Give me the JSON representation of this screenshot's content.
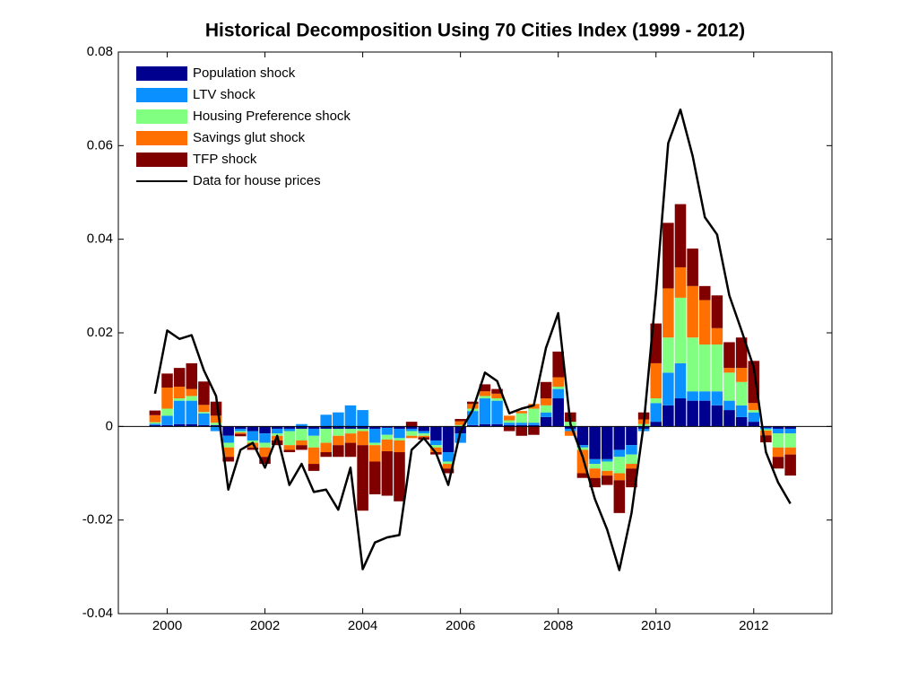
{
  "chart_data": {
    "type": "stacked_bar",
    "title": "Historical Decomposition Using 70 Cities Index (1999 - 2012)",
    "x": [
      1999.75,
      2000,
      2000.25,
      2000.5,
      2000.75,
      2001,
      2001.25,
      2001.5,
      2001.75,
      2002,
      2002.25,
      2002.5,
      2002.75,
      2003,
      2003.25,
      2003.5,
      2003.75,
      2004,
      2004.25,
      2004.5,
      2004.75,
      2005,
      2005.25,
      2005.5,
      2005.75,
      2006,
      2006.25,
      2006.5,
      2006.75,
      2007,
      2007.25,
      2007.5,
      2007.75,
      2008,
      2008.25,
      2008.5,
      2008.75,
      2009,
      2009.25,
      2009.5,
      2009.75,
      2010,
      2010.25,
      2010.5,
      2010.75,
      2011,
      2011.25,
      2011.5,
      2011.75,
      2012,
      2012.25,
      2012.5,
      2012.75
    ],
    "series": [
      {
        "name": "Population shock",
        "color": "#00008f",
        "type": "bar",
        "values": [
          0.0003,
          0.0003,
          0.0005,
          0.0005,
          0.0003,
          0.0003,
          -0.002,
          -0.0005,
          -0.001,
          -0.0015,
          -0.0005,
          -0.0005,
          -0.0005,
          -0.0005,
          -0.0005,
          -0.0005,
          -0.0005,
          -0.0005,
          -0.0005,
          -0.0003,
          -0.0005,
          -0.0005,
          -0.001,
          -0.003,
          -0.0055,
          -0.0015,
          0.0003,
          0.0005,
          0.0005,
          0.0003,
          0.0003,
          0.0003,
          0.002,
          0.006,
          -0.0005,
          -0.004,
          -0.007,
          -0.007,
          -0.005,
          -0.004,
          -0.0005,
          0.001,
          0.0045,
          0.006,
          0.0055,
          0.0055,
          0.0045,
          0.0035,
          0.002,
          0.001,
          -0.0003,
          -0.0005,
          -0.0005
        ]
      },
      {
        "name": "LTV shock",
        "color": "#0a90ff",
        "type": "bar",
        "values": [
          0.0003,
          0.002,
          0.005,
          0.005,
          0.0025,
          -0.001,
          -0.0015,
          -0.0005,
          -0.002,
          -0.002,
          -0.001,
          -0.0005,
          0.0005,
          -0.0015,
          0.0025,
          0.003,
          0.0045,
          0.0035,
          -0.003,
          -0.0015,
          -0.002,
          -0.0005,
          -0.0005,
          -0.001,
          -0.002,
          -0.002,
          0.003,
          0.0055,
          0.005,
          0.0005,
          0.0005,
          0.0005,
          0.001,
          0.002,
          -0.0005,
          -0.0005,
          -0.001,
          -0.0005,
          -0.0015,
          -0.002,
          -0.0005,
          0.004,
          0.007,
          0.0075,
          0.002,
          0.002,
          0.003,
          0.002,
          0.0025,
          0.002,
          -0.0003,
          -0.001,
          -0.001
        ]
      },
      {
        "name": "Housing Preference shock",
        "color": "#80ff80",
        "type": "bar",
        "values": [
          0.0003,
          0.0015,
          0.0005,
          0.001,
          0.0003,
          0.0005,
          -0.001,
          -0.0003,
          -0.0005,
          -0.001,
          -0.0005,
          -0.003,
          -0.0025,
          -0.0025,
          -0.003,
          -0.0015,
          -0.001,
          -0.0005,
          -0.0005,
          -0.001,
          -0.0005,
          -0.001,
          -0.0005,
          -0.0005,
          -0.0005,
          0.0003,
          0.0005,
          0.0005,
          0.0005,
          0.0005,
          0.002,
          0.003,
          0.0015,
          0.0005,
          0.001,
          -0.0005,
          -0.001,
          -0.002,
          -0.0035,
          -0.002,
          0.0005,
          0.001,
          0.0075,
          0.014,
          0.0115,
          0.01,
          0.01,
          0.006,
          0.005,
          0.0005,
          -0.0003,
          -0.003,
          -0.003
        ]
      },
      {
        "name": "Savings glut shock",
        "color": "#ff7000",
        "type": "bar",
        "values": [
          0.0015,
          0.0045,
          0.0025,
          0.0015,
          0.0015,
          0.0015,
          -0.002,
          -0.0003,
          -0.001,
          -0.002,
          -0.001,
          -0.001,
          -0.001,
          -0.0035,
          -0.002,
          -0.002,
          -0.002,
          -0.003,
          -0.0035,
          -0.0025,
          -0.0025,
          -0.0005,
          -0.0003,
          -0.001,
          -0.001,
          0.0008,
          0.001,
          0.001,
          0.001,
          0.001,
          0.0005,
          0.001,
          0.0015,
          0.002,
          -0.001,
          -0.005,
          -0.002,
          -0.001,
          -0.0015,
          -0.001,
          0.001,
          0.0075,
          0.0105,
          0.0065,
          0.011,
          0.0095,
          0.0035,
          0.001,
          0.003,
          0.0015,
          -0.001,
          -0.002,
          -0.0015
        ]
      },
      {
        "name": "TFP shock",
        "color": "#800000",
        "type": "bar",
        "values": [
          0.001,
          0.003,
          0.004,
          0.0055,
          0.005,
          0.003,
          -0.001,
          -0.0005,
          -0.0005,
          -0.0015,
          -0.001,
          -0.0005,
          -0.001,
          -0.0015,
          -0.001,
          -0.0025,
          -0.003,
          -0.014,
          -0.007,
          -0.0095,
          -0.0105,
          0.001,
          -0.0005,
          -0.0005,
          -0.001,
          0.0005,
          0.0005,
          0.0015,
          0.001,
          -0.001,
          -0.002,
          -0.0018,
          0.0035,
          0.0055,
          0.002,
          -0.001,
          -0.002,
          -0.002,
          -0.007,
          -0.004,
          0.0015,
          0.0085,
          0.014,
          0.0135,
          0.008,
          0.003,
          0.007,
          0.0055,
          0.0065,
          0.009,
          -0.0015,
          -0.0025,
          -0.0045
        ]
      },
      {
        "name": "Data for house prices",
        "color": "#000000",
        "type": "line",
        "values": [
          0.007,
          0.0205,
          0.0187,
          0.0195,
          0.012,
          0.0065,
          -0.0135,
          -0.005,
          -0.0035,
          -0.0088,
          -0.002,
          -0.0125,
          -0.008,
          -0.014,
          -0.0135,
          -0.0178,
          -0.0088,
          -0.0305,
          -0.0248,
          -0.0237,
          -0.0232,
          -0.005,
          -0.0025,
          -0.0057,
          -0.0125,
          -0.001,
          0.0035,
          0.0115,
          0.0097,
          0.0028,
          0.0038,
          0.0045,
          0.0168,
          0.0242,
          0.0005,
          -0.0065,
          -0.0155,
          -0.022,
          -0.0307,
          -0.0185,
          0.0005,
          0.0285,
          0.0605,
          0.0677,
          0.0578,
          0.0447,
          0.041,
          0.028,
          0.0205,
          0.0126,
          -0.0055,
          -0.012,
          -0.0165
        ]
      }
    ],
    "xlim": [
      1999,
      2013.6
    ],
    "xticks": [
      2000,
      2002,
      2004,
      2006,
      2008,
      2010,
      2012
    ],
    "ylim": [
      -0.04,
      0.08
    ],
    "yticks": [
      -0.04,
      -0.02,
      0,
      0.02,
      0.04,
      0.06,
      0.08
    ],
    "legend": "upper-left"
  }
}
